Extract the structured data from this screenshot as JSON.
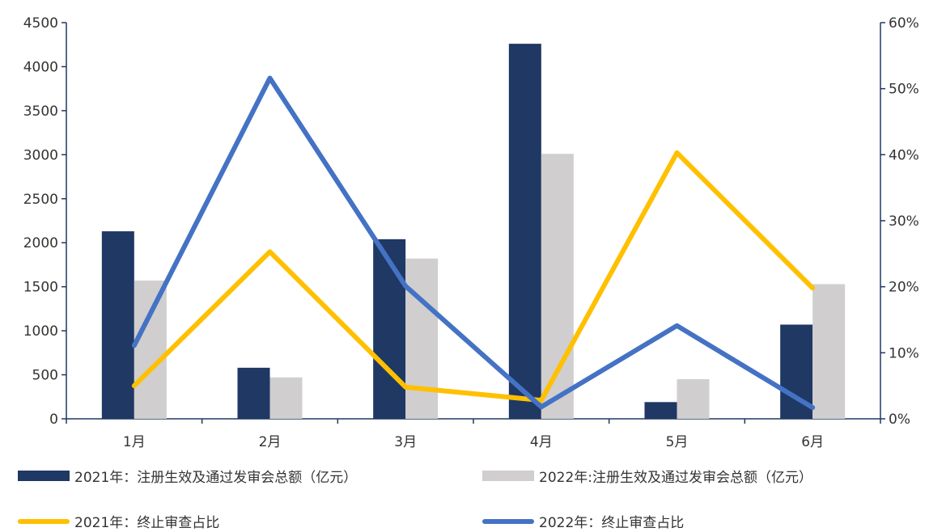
{
  "chart_data": {
    "type": "bar",
    "categories": [
      "1月",
      "2月",
      "3月",
      "4月",
      "5月",
      "6月"
    ],
    "left_axis": {
      "min": 0,
      "max": 4500,
      "ticks": [
        "0",
        "500",
        "1000",
        "1500",
        "2000",
        "2500",
        "3000",
        "3500",
        "4000",
        "4500"
      ]
    },
    "right_axis": {
      "min": 0,
      "max": 60,
      "ticks": [
        "0%",
        "10%",
        "20%",
        "30%",
        "40%",
        "50%",
        "60%"
      ]
    },
    "bar_series": [
      {
        "name": "2021年：注册生效及通过发审会总额（亿元）",
        "color": "#1f3864",
        "values": [
          2130,
          580,
          2040,
          4260,
          190,
          1070
        ]
      },
      {
        "name": "2022年:注册生效及通过发审会总额（亿元）",
        "color": "#d0cece",
        "values": [
          1570,
          470,
          1820,
          3010,
          450,
          1530
        ]
      }
    ],
    "line_series": [
      {
        "name": "2021年：终止审查占比",
        "color": "#ffc000",
        "values": [
          5,
          25.3,
          4.8,
          2.8,
          40.3,
          19.8
        ]
      },
      {
        "name": "2022年：终止审查占比",
        "color": "#4472c4",
        "values": [
          11.1,
          51.6,
          20.1,
          1.8,
          14.1,
          1.7
        ]
      }
    ],
    "grid": false,
    "legend_position": "bottom"
  }
}
